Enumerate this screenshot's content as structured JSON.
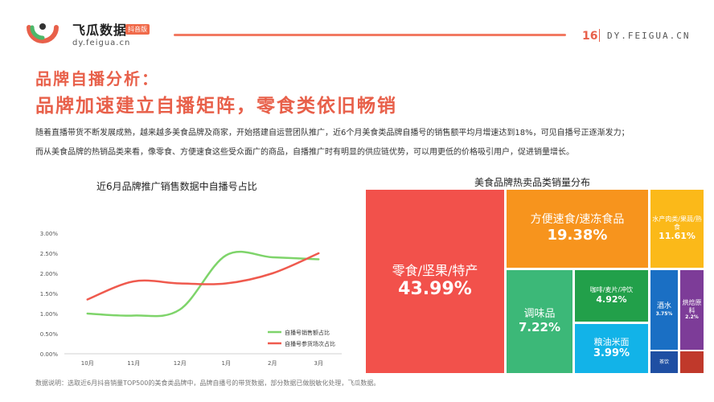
{
  "header": {
    "brand_name": "飞瓜数据",
    "brand_badge": "抖音版",
    "brand_url": "dy.feigua.cn",
    "page_number": "16",
    "site": "DY.FEIGUA.CN"
  },
  "slide": {
    "title_line1": "品牌自播分析：",
    "title_line2": "品牌加速建立自播矩阵，零食类依旧畅销",
    "paragraph1": "随着直播带货不断发展成熟，越来越多美食品牌及商家，开始搭建自运营团队推广，近6个月美食类品牌自播号的销售额平均月增速达到18%，可见自播号正逐渐发力；",
    "paragraph2": "而从美食品牌的热销品类来看，像零食、方便速食这些受众面广的商品，自播推广时有明显的供应链优势，可以用更低的价格吸引用户，促进销量增长。",
    "footnote": "数据说明：选取近6月抖音销量TOP500的美食类品牌中，品牌自播号的带货数据，部分数据已做脱敏化处理，飞瓜数据。"
  },
  "colors": {
    "accent": "#e8604a",
    "green_line": "#7ed46a",
    "red_line": "#ef5a4e"
  },
  "chart_data": [
    {
      "type": "line",
      "title": "近6月品牌推广销售数据中自播号占比",
      "categories": [
        "10月",
        "11月",
        "12月",
        "1月",
        "2月",
        "3月"
      ],
      "y_ticks": [
        "0.00%",
        "0.50%",
        "1.00%",
        "1.50%",
        "2.00%",
        "2.50%",
        "3.00%"
      ],
      "ylim": [
        0,
        3.0
      ],
      "series": [
        {
          "name": "自播号销售额占比",
          "color": "#7ed46a",
          "values": [
            1.0,
            0.95,
            1.1,
            2.45,
            2.4,
            2.35
          ]
        },
        {
          "name": "自播号参货场次占比",
          "color": "#ef5a4e",
          "values": [
            1.35,
            1.8,
            1.75,
            1.75,
            2.0,
            2.5
          ]
        }
      ],
      "legend_position": "bottom-right"
    },
    {
      "type": "treemap",
      "title": "美食品牌热卖品类销量分布",
      "items": [
        {
          "label": "零食/坚果/特产",
          "value": "43.99%",
          "color": "#f2514b"
        },
        {
          "label": "方便速食/速冻食品",
          "value": "19.38%",
          "color": "#f7941d"
        },
        {
          "label": "水产肉类/果蔬/熟食",
          "value": "11.61%",
          "color": "#fbb919"
        },
        {
          "label": "调味品",
          "value": "7.22%",
          "color": "#3cb878"
        },
        {
          "label": "咖啡/麦片/冲饮",
          "value": "4.92%",
          "color": "#22a04a"
        },
        {
          "label": "粮油米面",
          "value": "3.99%",
          "color": "#12b3e8"
        },
        {
          "label": "酒水",
          "value": "3.75%",
          "color": "#1a6fc4"
        },
        {
          "label": "烘焙原料",
          "value": "2.2%",
          "color": "#7d3c98"
        },
        {
          "label": "茶饮",
          "value": "",
          "color": "#1f4fa3"
        },
        {
          "label": "",
          "value": "",
          "color": "#c0392b"
        }
      ]
    }
  ]
}
